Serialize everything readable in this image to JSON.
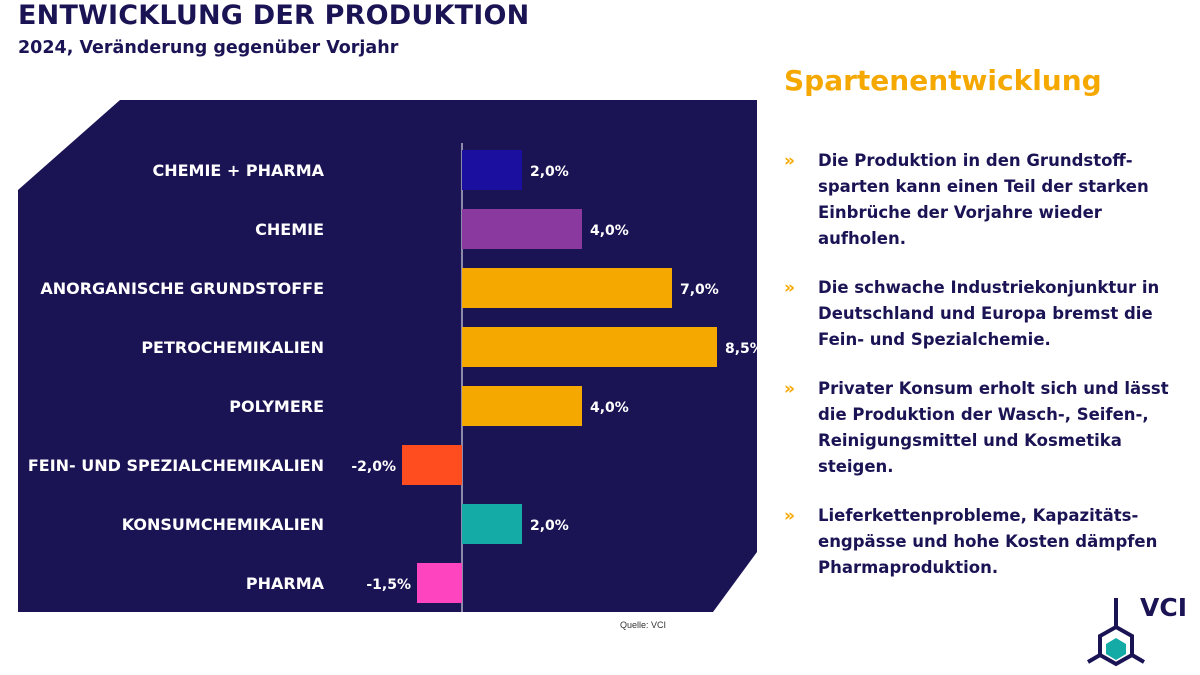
{
  "header": {
    "title": "ENTWICKLUNG DER PRODUKTION",
    "subtitle": "2024, Veränderung gegenüber Vorjahr"
  },
  "chart_data": {
    "type": "bar",
    "orientation": "horizontal",
    "categories": [
      "CHEMIE + PHARMA",
      "CHEMIE",
      "ANORGANISCHE GRUNDSTOFFE",
      "PETROCHEMIKALIEN",
      "POLYMERE",
      "FEIN- UND SPEZIALCHEMIKALIEN",
      "KONSUMCHEMIKALIEN",
      "PHARMA"
    ],
    "values": [
      2.0,
      4.0,
      7.0,
      8.5,
      4.0,
      -2.0,
      2.0,
      -1.5
    ],
    "value_labels": [
      "2,0%",
      "4,0%",
      "7,0%",
      "8,5%",
      "4,0%",
      "-2,0%",
      "2,0%",
      "-1,5%"
    ],
    "colors": [
      "#1a0f9e",
      "#8a3a9e",
      "#f5a800",
      "#f5a800",
      "#f5a800",
      "#ff4d1f",
      "#14aaa6",
      "#ff44c0"
    ],
    "xlim": [
      -2.0,
      9.8
    ],
    "background": "#1a1354",
    "axis_color": "#ffffff",
    "source": "Quelle: VCI"
  },
  "sidebar": {
    "heading": "Spartenentwicklung",
    "bullet_marker": "»",
    "bullets": [
      "Die Produktion in den Grundstoff-sparten kann einen Teil der starken Einbrüche der Vorjahre wieder aufholen.",
      "Die schwache Industriekonjunktur in Deutschland und Europa bremst die Fein- und Spezialchemie.",
      "Privater Konsum erholt sich und lässt die Produktion der Wasch-, Seifen-, Reinigungsmittel und Kosmetika steigen.",
      "Lieferkettenprobleme, Kapazitäts-engpässe und hohe Kosten dämpfen Pharmaproduktion."
    ]
  },
  "logo": {
    "text": "VCI",
    "color": "#1a1354",
    "accent": "#14aaa6"
  }
}
